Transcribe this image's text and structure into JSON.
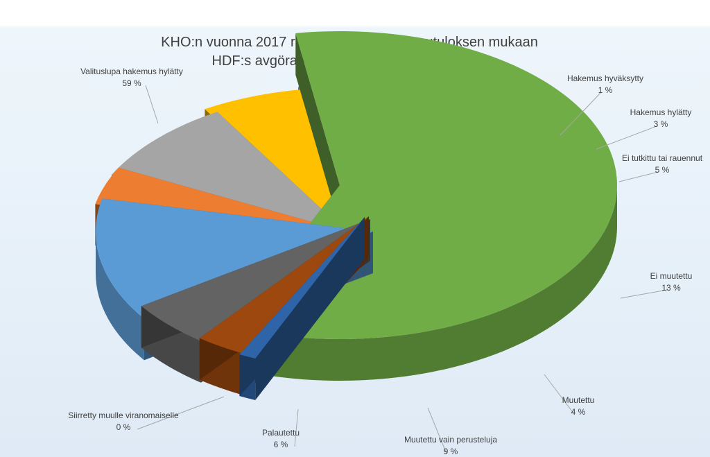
{
  "chart_data": {
    "type": "pie",
    "title": "KHO:n vuonna 2017 ratkaisemat asiat lopputuloksen mukaan",
    "subtitle": "HDF:s avgöranden år 2017 enligt slutresultat",
    "legend": "none",
    "slices": [
      {
        "label": "Valituslupa hakemus hylätty",
        "value": 59,
        "value_label": "59 %",
        "color": "#70ad47"
      },
      {
        "label": "Hakemus hyväksytty",
        "value": 1,
        "value_label": "1 %",
        "color": "#2f64a8"
      },
      {
        "label": "Hakemus hylätty",
        "value": 3,
        "value_label": "3 %",
        "color": "#9c480f"
      },
      {
        "label": "Ei tutkittu tai rauennut",
        "value": 5,
        "value_label": "5 %",
        "color": "#636363"
      },
      {
        "label": "Ei muutettu",
        "value": 13,
        "value_label": "13 %",
        "color": "#5b9bd5"
      },
      {
        "label": "Muutettu",
        "value": 4,
        "value_label": "4 %",
        "color": "#ed7d31"
      },
      {
        "label": "Muutettu vain perusteluja",
        "value": 9,
        "value_label": "9 %",
        "color": "#a5a5a5"
      },
      {
        "label": "Palautettu",
        "value": 6,
        "value_label": "6 %",
        "color": "#ffc000"
      },
      {
        "label": "Siirretty muulle viranomaiselle",
        "value": 0,
        "value_label": "0 %",
        "color": "#4472c4"
      }
    ]
  }
}
